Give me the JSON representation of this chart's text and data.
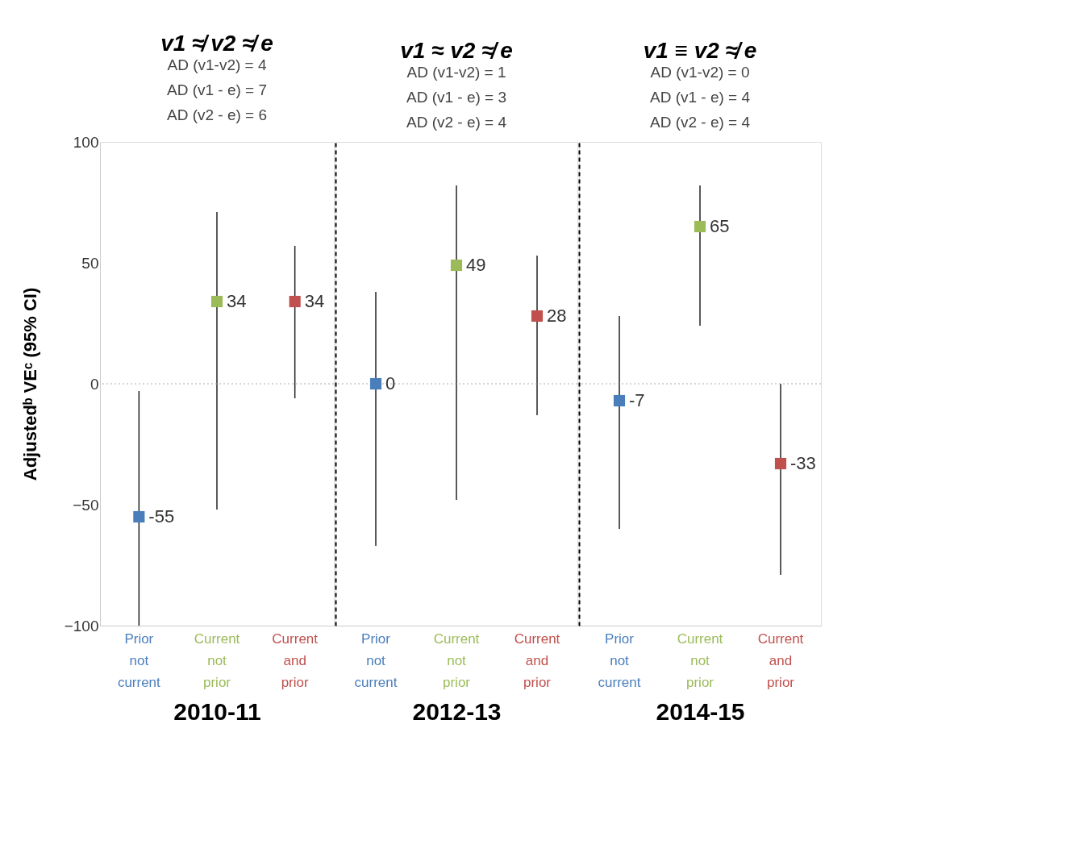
{
  "chart_data": [
    {
      "type": "scatter",
      "title": "v1 ≉ v2 ≉ e",
      "subtitle": [
        "AD (v1-v2) = 4",
        "AD (v1 - e) = 7",
        "AD (v2 - e) = 6"
      ],
      "xlabel": "2010-11",
      "ylabel": "Adjustedᵇ VEᶜ (95% CI)",
      "categories": [
        "Prior not current",
        "Current not prior",
        "Current and prior"
      ],
      "values": [
        -55,
        34,
        34
      ],
      "colors": [
        "#4a7ebb",
        "#9bbb59",
        "#c0504d"
      ],
      "errors": [
        [
          -100,
          -3
        ],
        [
          -52,
          71
        ],
        [
          -6,
          57
        ]
      ],
      "ylim": [
        -100,
        100
      ],
      "yticks": [
        -100,
        -50,
        0,
        50,
        100
      ],
      "marker": "square",
      "data_labels": true,
      "grid": false,
      "ref_lines": [
        {
          "axis": "y",
          "value": 0,
          "color": "#aaaaaa",
          "line_style": "dotted"
        }
      ]
    },
    {
      "type": "scatter",
      "title": "v1 ≈ v2 ≉ e",
      "subtitle": [
        "AD (v1-v2) = 1",
        "AD (v1 - e) = 3",
        "AD (v2 - e) = 4"
      ],
      "xlabel": "2012-13",
      "categories": [
        "Prior not current",
        "Current not prior",
        "Current and prior"
      ],
      "values": [
        0,
        49,
        28
      ],
      "colors": [
        "#4a7ebb",
        "#9bbb59",
        "#c0504d"
      ],
      "errors": [
        [
          -67,
          38
        ],
        [
          -48,
          82
        ],
        [
          -13,
          53
        ]
      ],
      "ylim": [
        -100,
        100
      ],
      "yticks": [
        -100,
        -50,
        0,
        50,
        100
      ],
      "tick_labels": "x",
      "marker": "square",
      "data_labels": true,
      "grid": false,
      "ref_lines": [
        {
          "axis": "y",
          "value": 0,
          "color": "#aaaaaa",
          "line_style": "dotted"
        }
      ]
    },
    {
      "type": "scatter",
      "title": "v1 ≡ v2 ≉ e",
      "subtitle": [
        "AD (v1-v2) = 0",
        "AD (v1 - e) = 4",
        "AD (v2 - e) = 4"
      ],
      "xlabel": "2014-15",
      "categories": [
        "Prior not current",
        "Current not prior",
        "Current and prior"
      ],
      "values": [
        -7,
        65,
        -33
      ],
      "colors": [
        "#4a7ebb",
        "#9bbb59",
        "#c0504d"
      ],
      "errors": [
        [
          -60,
          28
        ],
        [
          24,
          82
        ],
        [
          -79,
          0
        ]
      ],
      "ylim": [
        -100,
        100
      ],
      "yticks": [
        -100,
        -50,
        0,
        50,
        100
      ],
      "tick_labels": "x",
      "marker": "square",
      "data_labels": true,
      "grid": false,
      "ref_lines": [
        {
          "axis": "y",
          "value": 0,
          "color": "#aaaaaa",
          "line_style": "dotted"
        }
      ]
    }
  ]
}
